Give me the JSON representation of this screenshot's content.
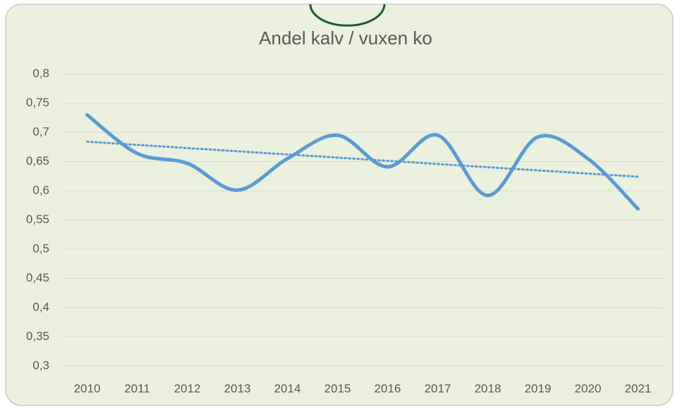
{
  "chart_data": {
    "type": "line",
    "title": "Andel kalv / vuxen ko",
    "categories": [
      "2010",
      "2011",
      "2012",
      "2013",
      "2014",
      "2015",
      "2016",
      "2017",
      "2018",
      "2019",
      "2020",
      "2021"
    ],
    "series": [
      {
        "color": "#5b9bd5",
        "values": [
          0.73,
          0.664,
          0.647,
          0.601,
          0.655,
          0.695,
          0.641,
          0.695,
          0.592,
          0.692,
          0.655,
          0.569
        ]
      }
    ],
    "trendline": {
      "color": "#5b9bd5",
      "start": 0.684,
      "end": 0.624,
      "style": "dotted"
    },
    "ylim": [
      0.3,
      0.8
    ],
    "yticks": [
      {
        "value": 0.3,
        "label": "0,3"
      },
      {
        "value": 0.35,
        "label": "0,35"
      },
      {
        "value": 0.4,
        "label": "0,4"
      },
      {
        "value": 0.45,
        "label": "0,45"
      },
      {
        "value": 0.5,
        "label": "0,5"
      },
      {
        "value": 0.55,
        "label": "0,55"
      },
      {
        "value": 0.6,
        "label": "0,6"
      },
      {
        "value": 0.65,
        "label": "0,65"
      },
      {
        "value": 0.7,
        "label": "0,7"
      },
      {
        "value": 0.75,
        "label": "0,75"
      },
      {
        "value": 0.8,
        "label": "0,8"
      }
    ],
    "grid": true
  }
}
